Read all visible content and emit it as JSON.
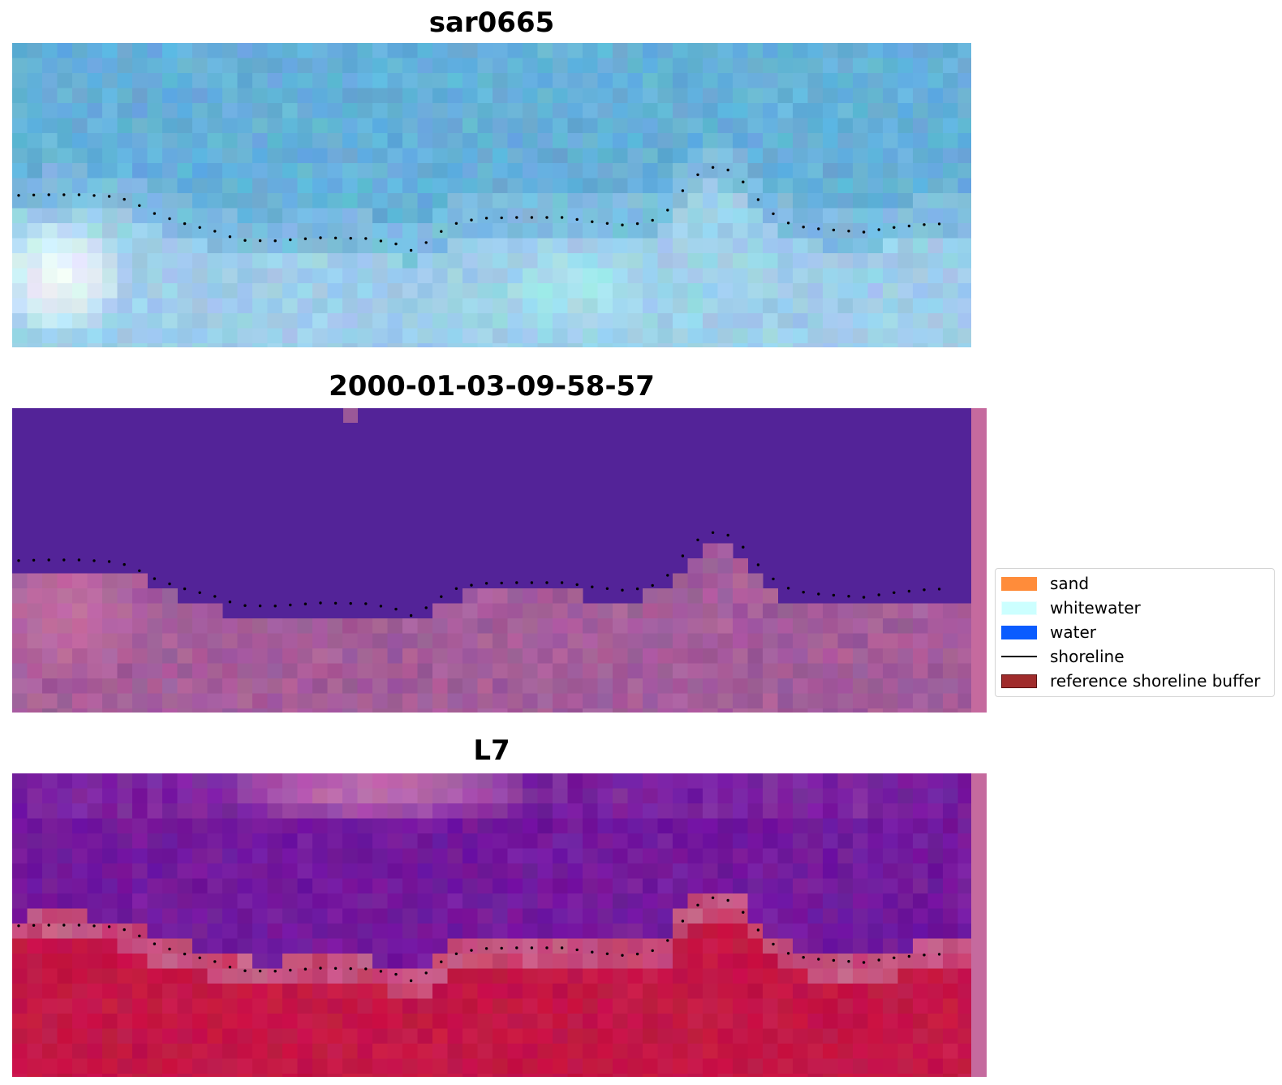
{
  "panels": [
    {
      "id": "sar",
      "title": "sar0665"
    },
    {
      "id": "class",
      "title": "2000-01-03-09-58-57"
    },
    {
      "id": "l7",
      "title": "L7"
    }
  ],
  "legend": {
    "items": [
      {
        "label": "sand",
        "color": "#ff8c3a",
        "kind": "patch"
      },
      {
        "label": "whitewater",
        "color": "#ccffff",
        "kind": "patch"
      },
      {
        "label": "water",
        "color": "#0a5cff",
        "kind": "patch"
      },
      {
        "label": "shoreline",
        "color": "#000000",
        "kind": "line"
      },
      {
        "label": "reference shoreline buffer",
        "color": "#a02c2c",
        "kind": "patch"
      }
    ]
  },
  "colors": {
    "sar_sea": "#62abd8",
    "sar_land": "#9ed0e8",
    "sar_bright": "#f2f8fc",
    "class_water": "#532398",
    "class_land": "#9a5898",
    "class_land_pink": "#c86fa3",
    "l7_water": "#7a1fa0",
    "l7_land": "#c21444",
    "l7_band": "#c7638f",
    "l7_top_pink": "#c97ab0",
    "strip": "#c56a9e",
    "shoreline_dots": "#000000"
  }
}
